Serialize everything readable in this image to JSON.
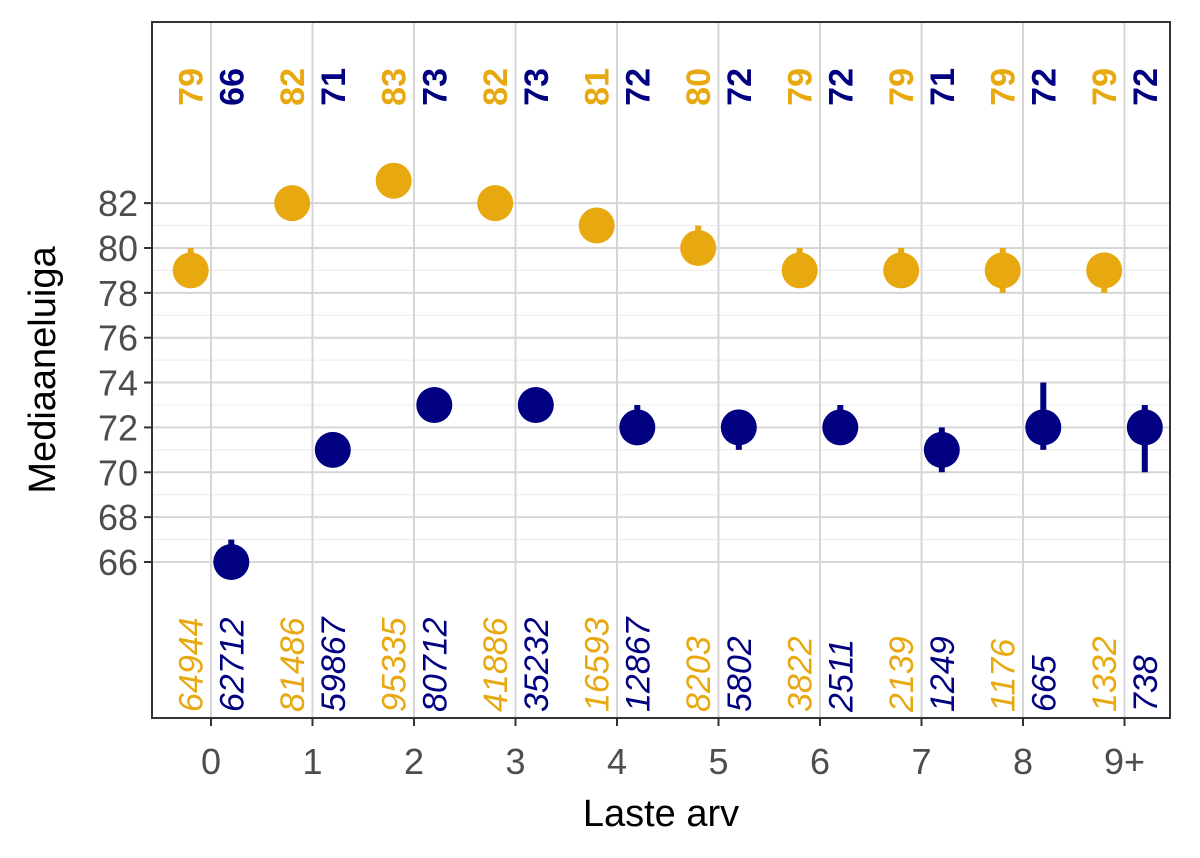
{
  "chart_data": {
    "type": "scatter",
    "title": "",
    "xlabel": "Laste arv",
    "ylabel": "Mediaaneluiga",
    "categories": [
      "0",
      "1",
      "2",
      "3",
      "4",
      "5",
      "6",
      "7",
      "8",
      "9+"
    ],
    "y_ticks": [
      66,
      68,
      70,
      72,
      74,
      76,
      78,
      80,
      82
    ],
    "ylim": [
      63.2,
      91.6
    ],
    "grid": true,
    "legend": "none",
    "series": [
      {
        "color": "#E8A80F",
        "offset": -0.2,
        "values": [
          79,
          82,
          83,
          82,
          81,
          80,
          79,
          79,
          79,
          79
        ],
        "err_low": [
          79,
          82,
          83,
          82,
          81,
          80,
          79,
          79,
          78,
          78
        ],
        "err_high": [
          80,
          82,
          83,
          82,
          81,
          81,
          80,
          80,
          80,
          79
        ],
        "median_labels": [
          "79",
          "82",
          "83",
          "82",
          "81",
          "80",
          "79",
          "79",
          "79",
          "79"
        ],
        "count_labels": [
          "64944",
          "81486",
          "95335",
          "41886",
          "16593",
          "8203",
          "3822",
          "2139",
          "1176",
          "1332"
        ]
      },
      {
        "color": "#000080",
        "offset": 0.2,
        "values": [
          66,
          71,
          73,
          73,
          72,
          72,
          72,
          71,
          72,
          72
        ],
        "err_low": [
          66,
          71,
          73,
          73,
          72,
          71,
          72,
          70,
          71,
          70
        ],
        "err_high": [
          67,
          71,
          73,
          73,
          73,
          72,
          73,
          72,
          74,
          73
        ],
        "median_labels": [
          "66",
          "71",
          "73",
          "73",
          "72",
          "72",
          "72",
          "71",
          "72",
          "72"
        ],
        "count_labels": [
          "62712",
          "59867",
          "80712",
          "35232",
          "12867",
          "5802",
          "2511",
          "1249",
          "665",
          "738"
        ]
      }
    ]
  }
}
